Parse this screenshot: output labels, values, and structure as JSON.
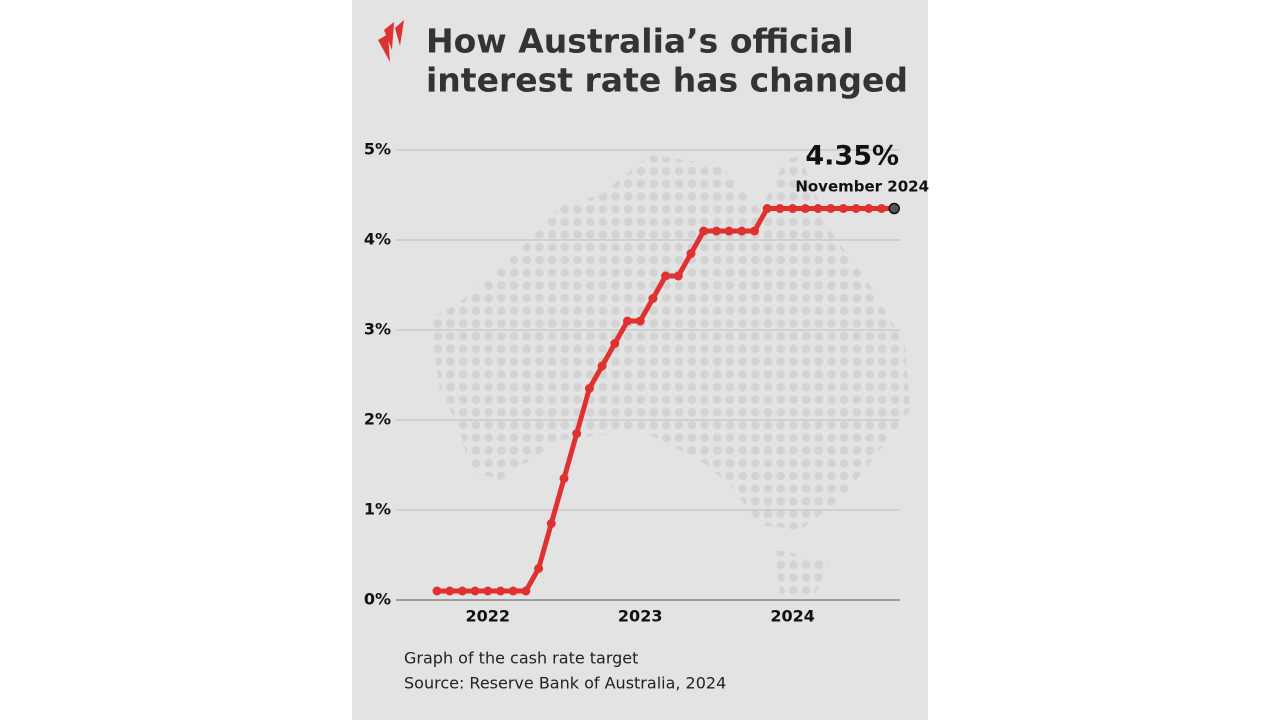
{
  "chart_data": {
    "type": "line",
    "title": [
      "How Australia’s official",
      "interest rate has changed"
    ],
    "categories": [
      null,
      null,
      null,
      null,
      "2022",
      null,
      null,
      null,
      null,
      null,
      null,
      null,
      null,
      null,
      null,
      null,
      "2023",
      null,
      null,
      null,
      null,
      null,
      null,
      null,
      null,
      null,
      null,
      null,
      "2024",
      null,
      null,
      null,
      null,
      null,
      null,
      null,
      null
    ],
    "series": [
      {
        "name": "Cash rate target",
        "color": "#e03131",
        "values": [
          0.1,
          0.1,
          0.1,
          0.1,
          0.1,
          0.1,
          0.1,
          0.1,
          0.35,
          0.85,
          1.35,
          1.85,
          2.35,
          2.6,
          2.85,
          3.1,
          3.1,
          3.35,
          3.6,
          3.6,
          3.85,
          4.1,
          4.1,
          4.1,
          4.1,
          4.1,
          4.35,
          4.35,
          4.35,
          4.35,
          4.35,
          4.35,
          4.35,
          4.35,
          4.35,
          4.35,
          4.35
        ]
      }
    ],
    "ylim": [
      0,
      5
    ],
    "yticks": [
      {
        "value": 0,
        "label": "0%"
      },
      {
        "value": 1,
        "label": "1%"
      },
      {
        "value": 2,
        "label": "2%"
      },
      {
        "value": 3,
        "label": "3%"
      },
      {
        "value": 4,
        "label": "4%"
      },
      {
        "value": 5,
        "label": "5%"
      }
    ],
    "grid": true,
    "annotation": {
      "value_label": "4.35%",
      "date": "November 2024"
    },
    "caption": "Graph of the cash rate target",
    "source": "Source: Reserve Bank of Australia, 2024"
  }
}
